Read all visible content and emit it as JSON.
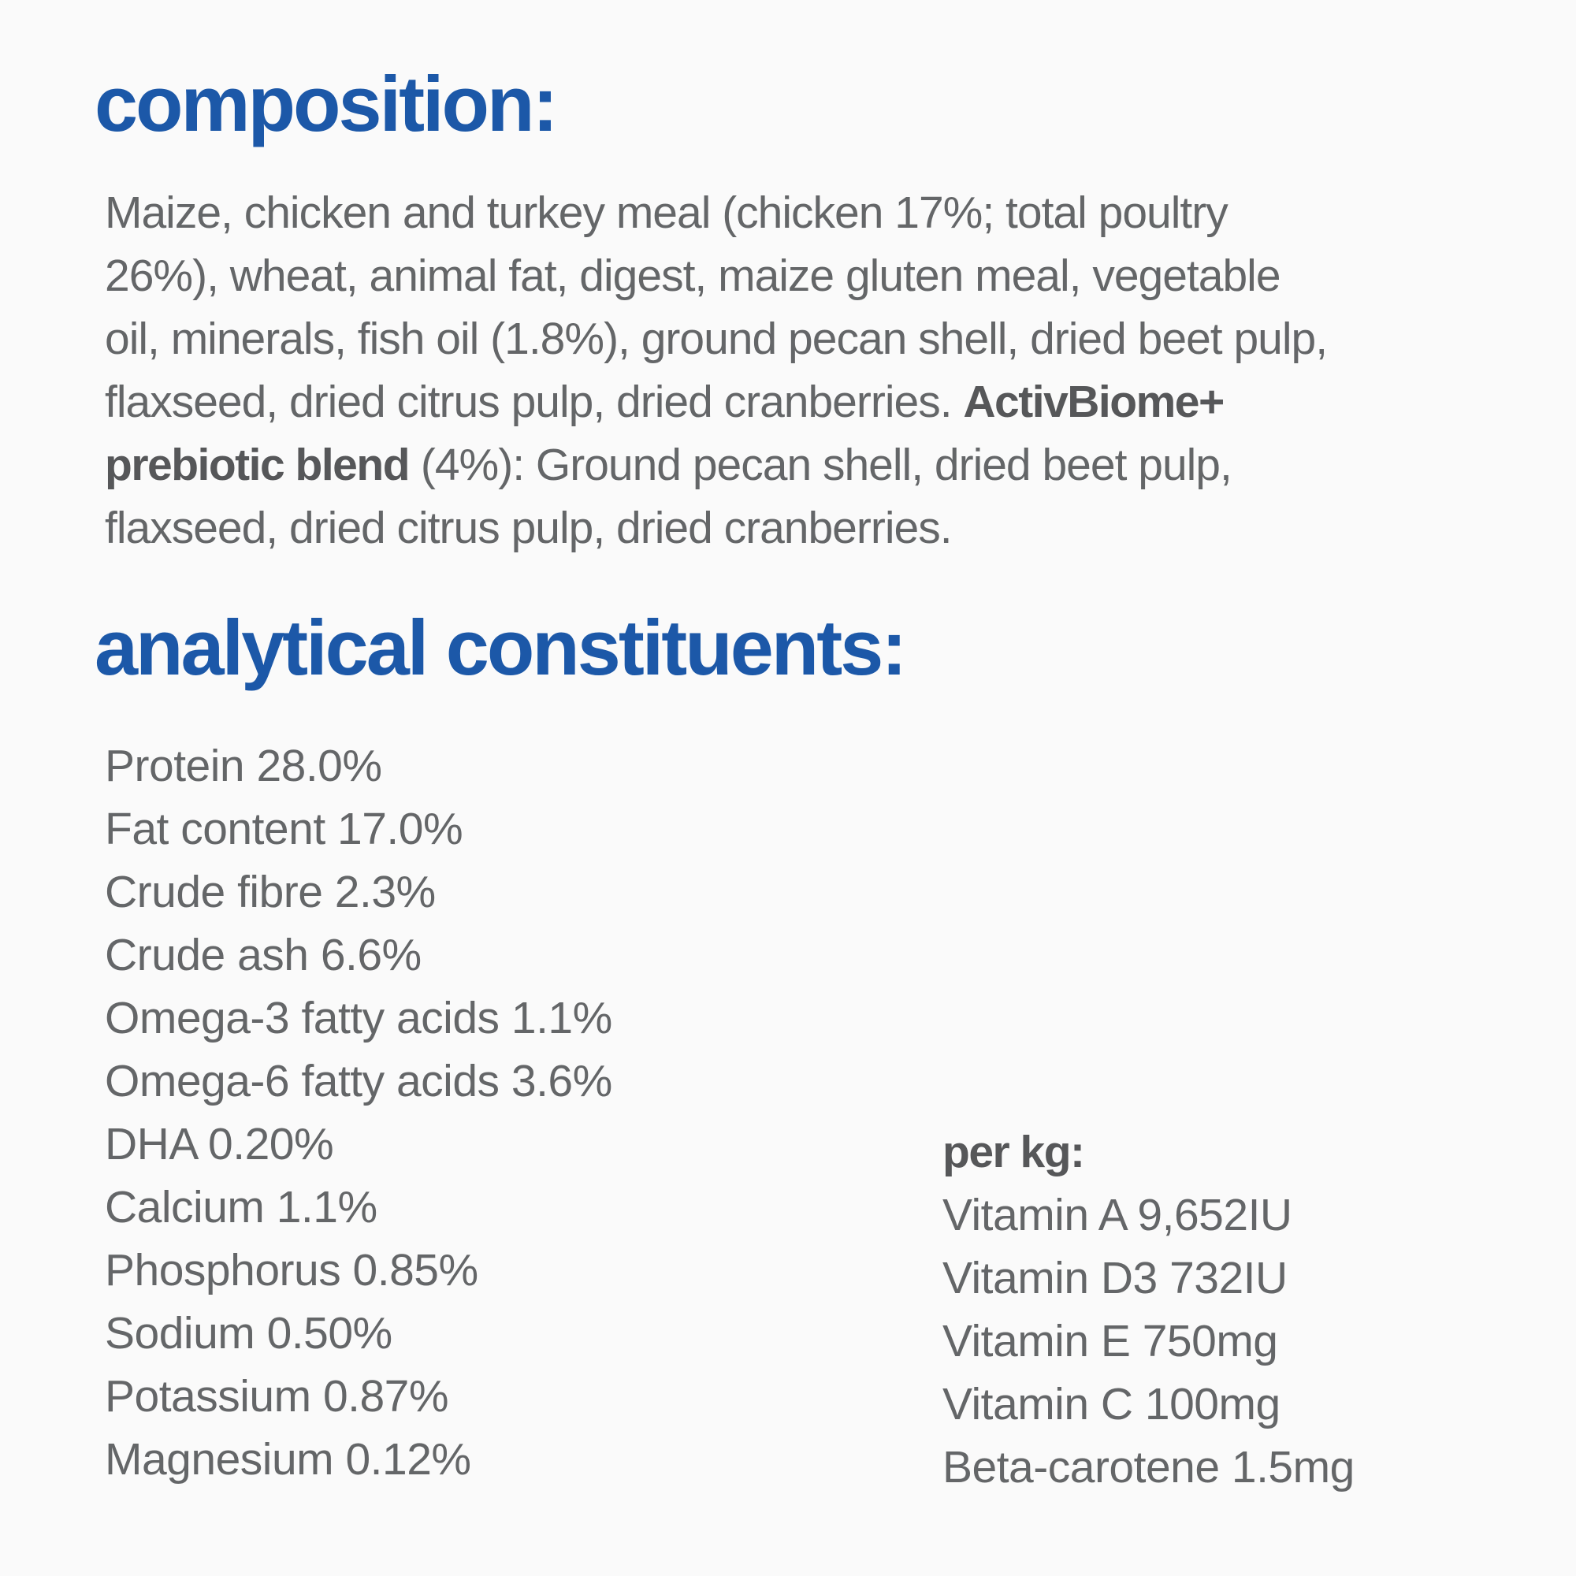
{
  "colors": {
    "heading_blue": "#1c58a8",
    "body_gray": "#646668",
    "background": "#fafafa"
  },
  "composition": {
    "heading": "composition:",
    "lines": [
      [
        {
          "t": "Maize, chicken and turkey meal (chicken 17%; total poultry",
          "b": false
        }
      ],
      [
        {
          "t": "26%), wheat, animal fat, digest, maize gluten meal, vegetable",
          "b": false
        }
      ],
      [
        {
          "t": "oil, minerals, fish oil (1.8%), ground pecan shell, dried beet pulp,",
          "b": false
        }
      ],
      [
        {
          "t": "flaxseed, dried citrus pulp, dried cranberries. ",
          "b": false
        },
        {
          "t": "ActivBiome+",
          "b": true
        }
      ],
      [
        {
          "t": "prebiotic blend",
          "b": true
        },
        {
          "t": " (4%): Ground pecan shell, dried beet pulp,",
          "b": false
        }
      ],
      [
        {
          "t": "flaxseed, dried citrus pulp, dried cranberries.",
          "b": false
        }
      ]
    ]
  },
  "analytical": {
    "heading": "analytical constituents:",
    "left_items": [
      "Protein 28.0%",
      "Fat content 17.0%",
      "Crude fibre 2.3%",
      "Crude ash 6.6%",
      "Omega-3 fatty acids 1.1%",
      "Omega-6 fatty acids 3.6%",
      "DHA 0.20%",
      "Calcium 1.1%",
      "Phosphorus 0.85%",
      "Sodium 0.50%",
      "Potassium 0.87%",
      "Magnesium 0.12%"
    ],
    "per_kg_label": "per kg:",
    "per_kg_items": [
      "Vitamin A 9,652IU",
      "Vitamin D3 732IU",
      "Vitamin E 750mg",
      "Vitamin C 100mg",
      "Beta-carotene 1.5mg"
    ]
  }
}
